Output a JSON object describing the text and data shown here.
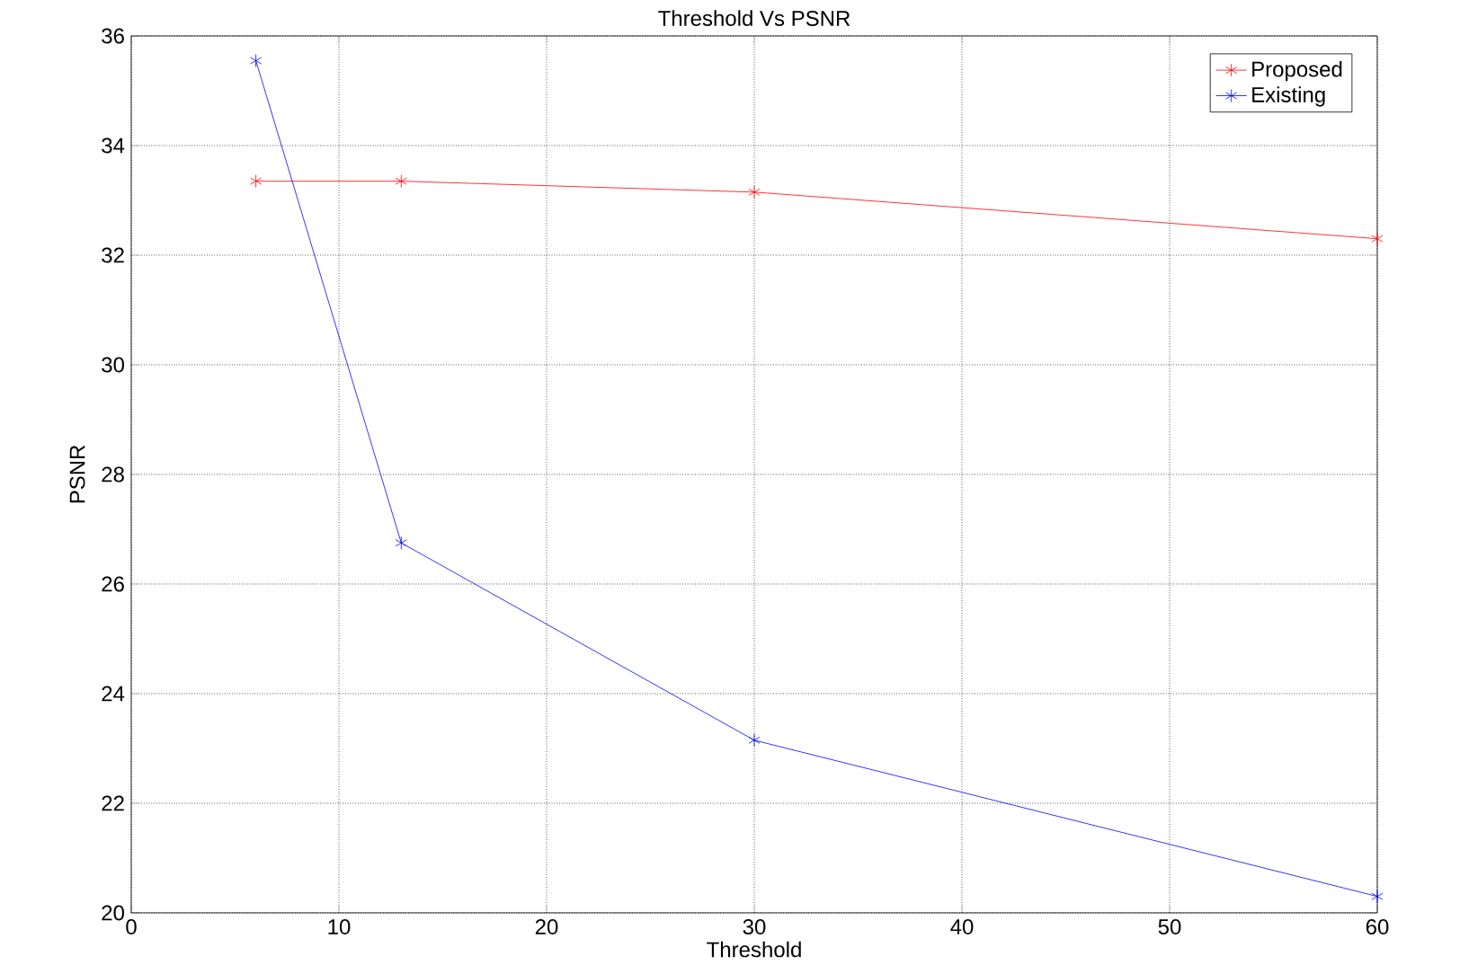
{
  "chart_data": {
    "type": "line",
    "title": "Threshold Vs PSNR",
    "xlabel": "Threshold",
    "ylabel": "PSNR",
    "x": [
      6,
      13,
      30,
      60
    ],
    "series": [
      {
        "name": "Proposed",
        "color": "#ff0000",
        "values": [
          33.35,
          33.35,
          33.15,
          32.3
        ]
      },
      {
        "name": "Existing",
        "color": "#0000ff",
        "values": [
          35.55,
          26.75,
          23.15,
          20.3
        ]
      }
    ],
    "xlim": [
      0,
      60
    ],
    "xticks": [
      0,
      10,
      20,
      30,
      40,
      50,
      60
    ],
    "ylim": [
      20,
      36
    ],
    "yticks": [
      20,
      22,
      24,
      26,
      28,
      30,
      32,
      34,
      36
    ],
    "grid": true,
    "legend": "top right",
    "marker": "cross",
    "line_style": "solid"
  }
}
